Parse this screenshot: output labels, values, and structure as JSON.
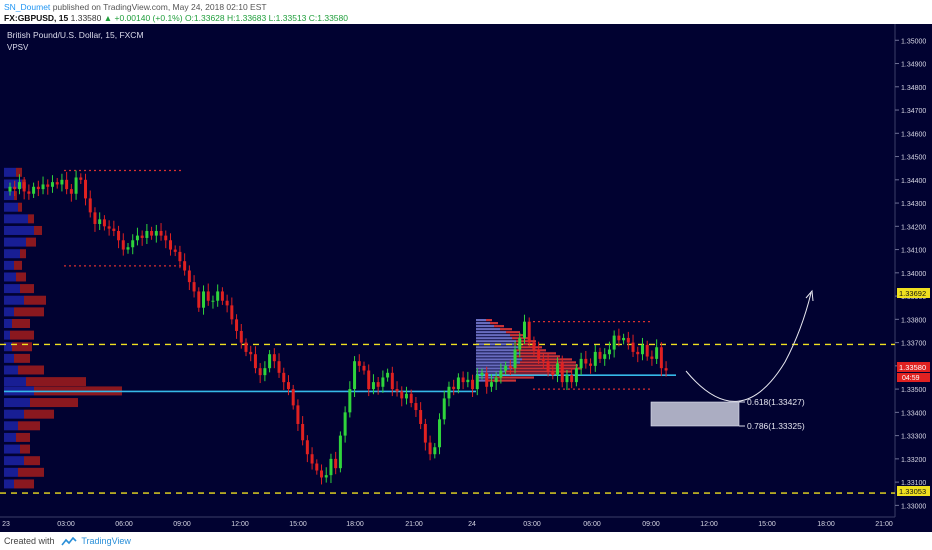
{
  "header": {
    "author": "SN_Doumet",
    "published": "published on TradingView.com, May 24, 2018 02:10 EST",
    "symbol": "FX:GBPUSD, 15",
    "price": "1.33580",
    "change": "▲ +0.00140 (+0.1%)",
    "ohlc": "O:1.33628  H:1.33683  L:1.33513  C:1.33580"
  },
  "footer": {
    "created_with": "Created with",
    "brand": "TradingView"
  },
  "colors": {
    "background": "#010231",
    "up_candle": "#2fd43c",
    "down_candle": "#e02121",
    "key_level": "#f0e020",
    "value_area_line": "#36b9e8",
    "volume_profile_blue": "#1c23a6",
    "volume_profile_red": "#a21c1c"
  },
  "chart_data": {
    "type": "candlestick",
    "title": "British Pound/U.S. Dollar, 15, FXCM",
    "indicator": "VPSV",
    "ylim": [
      1.3295,
      1.3507
    ],
    "y_ticks": [
      "1.35000",
      "1.34900",
      "1.34800",
      "1.34700",
      "1.34600",
      "1.34500",
      "1.34400",
      "1.34300",
      "1.34200",
      "1.34100",
      "1.34000",
      "1.33900",
      "1.33800",
      "1.33700",
      "1.33600",
      "1.33500",
      "1.33400",
      "1.33300",
      "1.33200",
      "1.33100",
      "1.33000"
    ],
    "x_ticks": [
      "23",
      "03:00",
      "06:00",
      "09:00",
      "12:00",
      "15:00",
      "18:00",
      "21:00",
      "24",
      "03:00",
      "06:00",
      "09:00",
      "12:00",
      "15:00",
      "18:00",
      "21:00"
    ],
    "key_levels": [
      {
        "label": "1.33692",
        "value": 1.33692
      },
      {
        "label": "1.33053",
        "value": 1.33053
      }
    ],
    "current_price": {
      "label": "1.33580",
      "value": 1.3358
    },
    "countdown": "04:59",
    "fib_targets": [
      {
        "label": "0.618(1.33427)",
        "value": 1.33427
      },
      {
        "label": "0.786(1.33325)",
        "value": 1.33325
      }
    ],
    "candles_close": [
      1.3437,
      1.3436,
      1.3439,
      1.3435,
      1.3434,
      1.3437,
      1.3436,
      1.3438,
      1.3437,
      1.3439,
      1.3438,
      1.344,
      1.3436,
      1.3434,
      1.3441,
      1.344,
      1.3432,
      1.3426,
      1.3421,
      1.3423,
      1.342,
      1.3419,
      1.3418,
      1.3414,
      1.341,
      1.3411,
      1.3414,
      1.3416,
      1.3415,
      1.3418,
      1.3416,
      1.3418,
      1.3416,
      1.3414,
      1.341,
      1.3409,
      1.3405,
      1.3401,
      1.3396,
      1.3392,
      1.3385,
      1.3392,
      1.3388,
      1.3388,
      1.3392,
      1.3388,
      1.3386,
      1.338,
      1.3375,
      1.337,
      1.3366,
      1.3365,
      1.3359,
      1.3356,
      1.3359,
      1.3365,
      1.3362,
      1.3357,
      1.3353,
      1.335,
      1.3343,
      1.3335,
      1.3328,
      1.3322,
      1.3318,
      1.3315,
      1.3312,
      1.3313,
      1.332,
      1.3316,
      1.333,
      1.334,
      1.335,
      1.3362,
      1.336,
      1.3358,
      1.335,
      1.3353,
      1.3351,
      1.3355,
      1.3357,
      1.335,
      1.3349,
      1.3346,
      1.3348,
      1.3344,
      1.3341,
      1.3335,
      1.3327,
      1.3322,
      1.3325,
      1.3337,
      1.3346,
      1.3351,
      1.335,
      1.3355,
      1.3353,
      1.3354,
      1.335,
      1.3356,
      1.3357,
      1.3351,
      1.3353,
      1.3355,
      1.3358,
      1.336,
      1.3359,
      1.3367,
      1.3372,
      1.3379,
      1.337,
      1.3367,
      1.3363,
      1.3362,
      1.3358,
      1.3356,
      1.3361,
      1.3353,
      1.3356,
      1.3353,
      1.3359,
      1.3363,
      1.3361,
      1.336,
      1.3366,
      1.3363,
      1.3365,
      1.3367,
      1.3373,
      1.3371,
      1.3372,
      1.337,
      1.3366,
      1.3365,
      1.3369,
      1.3364,
      1.3363,
      1.3368,
      1.3359,
      1.3358
    ]
  }
}
